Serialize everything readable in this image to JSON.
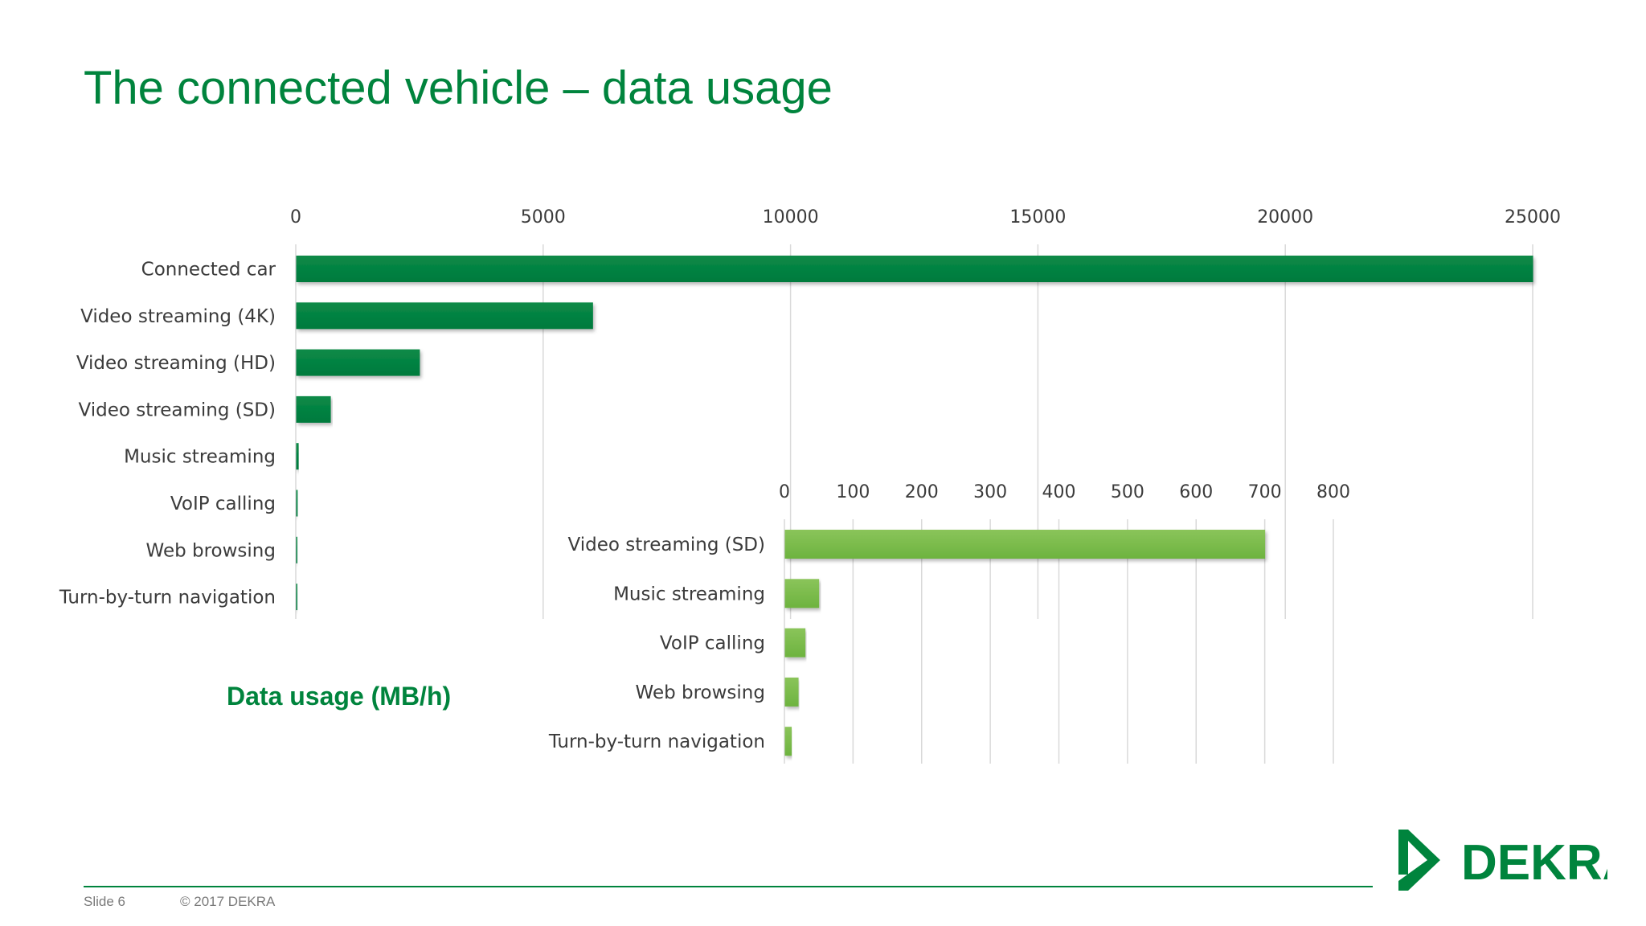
{
  "slide": {
    "title": "The connected vehicle – data usage",
    "unit_label": "Data usage (MB/h)",
    "footer_slide": "Slide 6",
    "footer_copyright": "© 2017 DEKRA",
    "logo_text": "DEKRA"
  },
  "colors": {
    "brand_green": "#00843d",
    "main_bar": "#007a3d",
    "inset_bar": "#6db33f",
    "grid": "#d9d9d9"
  },
  "chart_data": [
    {
      "type": "bar",
      "orientation": "horizontal",
      "categories": [
        "Connected car",
        "Video streaming (4K)",
        "Video streaming (HD)",
        "Video streaming (SD)",
        "Music streaming",
        "VoIP calling",
        "Web browsing",
        "Turn-by-turn navigation"
      ],
      "values": [
        25000,
        6000,
        2500,
        700,
        50,
        30,
        20,
        10
      ],
      "xlim": [
        0,
        25000
      ],
      "ticks": [
        "0",
        "5000",
        "10000",
        "15000",
        "20000",
        "25000"
      ],
      "axis_position": "top",
      "grid": true
    },
    {
      "type": "bar",
      "orientation": "horizontal",
      "categories": [
        "Video streaming (SD)",
        "Music streaming",
        "VoIP calling",
        "Web browsing",
        "Turn-by-turn navigation"
      ],
      "values": [
        700,
        50,
        30,
        20,
        10
      ],
      "xlim": [
        0,
        800
      ],
      "ticks": [
        "0",
        "100",
        "200",
        "300",
        "400",
        "500",
        "600",
        "700",
        "800"
      ],
      "axis_position": "top",
      "grid": true
    }
  ]
}
